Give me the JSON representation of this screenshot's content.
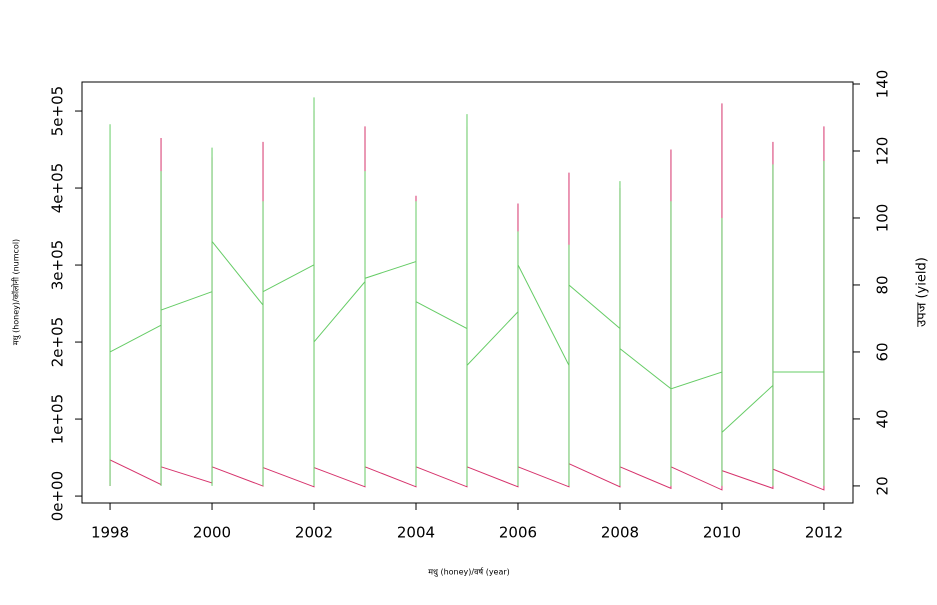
{
  "chart_data": {
    "type": "line",
    "x_label": "मधु (honey)/वर्ष (year)",
    "y_label": "मधु (honey)/कॉलोनी (numcol)",
    "y2_label": "उपज (yield)",
    "xlim": [
      1997.45,
      2012.57
    ],
    "xticks": [
      1998,
      2000,
      2002,
      2004,
      2006,
      2008,
      2010,
      2012
    ],
    "ylim": [
      -9000,
      537700
    ],
    "yticks": [
      {
        "value": 0,
        "label": "0e+00"
      },
      {
        "value": 100000,
        "label": "1e+05"
      },
      {
        "value": 200000,
        "label": "2e+05"
      },
      {
        "value": 300000,
        "label": "3e+05"
      },
      {
        "value": 400000,
        "label": "4e+05"
      },
      {
        "value": 500000,
        "label": "5e+05"
      }
    ],
    "y2lim": [
      14.9,
      140.6
    ],
    "y2ticks": [
      20,
      40,
      60,
      80,
      100,
      120,
      140
    ],
    "series": [
      {
        "color": "#d6336c",
        "x": [
          1998,
          1998,
          1999,
          1999,
          1999,
          2000,
          2000,
          2000,
          2001,
          2001,
          2001,
          2002,
          2002,
          2002,
          2003,
          2003,
          2003,
          2004,
          2004,
          2004,
          2005,
          2005,
          2005,
          2006,
          2006,
          2006,
          2007,
          2007,
          2007,
          2008,
          2008,
          2008,
          2009,
          2009,
          2009,
          2010,
          2010,
          2010,
          2011,
          2011,
          2011,
          2012,
          2012
        ],
        "values": [
          13000,
          47000,
          15000,
          465000,
          38000,
          17000,
          440000,
          38000,
          13000,
          460000,
          37000,
          12000,
          500000,
          37000,
          12000,
          480000,
          38000,
          12000,
          390000,
          38000,
          12000,
          480000,
          38000,
          12000,
          380000,
          38000,
          12000,
          420000,
          42000,
          12000,
          400000,
          38000,
          10000,
          450000,
          38000,
          8000,
          510000,
          33000,
          10000,
          460000,
          35000,
          8000,
          480000
        ]
      },
      {
        "color": "#66cc66",
        "axis": "y2",
        "x": [
          1998,
          1998,
          1998,
          1999,
          1999,
          1999,
          1999,
          2000,
          2000,
          2000,
          2000,
          2001,
          2001,
          2001,
          2001,
          2002,
          2002,
          2002,
          2002,
          2003,
          2003,
          2003,
          2003,
          2004,
          2004,
          2004,
          2004,
          2005,
          2005,
          2005,
          2005,
          2006,
          2006,
          2006,
          2006,
          2007,
          2007,
          2007,
          2007,
          2008,
          2008,
          2008,
          2008,
          2009,
          2009,
          2009,
          2009,
          2010,
          2010,
          2010,
          2010,
          2011,
          2011,
          2011,
          2011,
          2012,
          2012,
          2012
        ],
        "values": [
          20,
          128,
          60,
          68,
          20,
          114,
          72.5,
          78,
          20,
          121,
          93,
          74,
          20,
          105,
          78,
          86,
          20,
          136,
          63,
          81,
          20,
          114,
          82,
          87,
          20,
          105,
          75,
          67,
          20,
          131,
          56,
          72,
          20,
          96,
          86,
          56,
          20,
          92,
          80,
          67,
          20,
          111,
          61,
          49,
          20,
          105,
          49,
          54,
          20,
          100,
          36,
          50,
          20,
          116,
          54,
          54,
          20,
          117
        ]
      }
    ]
  }
}
